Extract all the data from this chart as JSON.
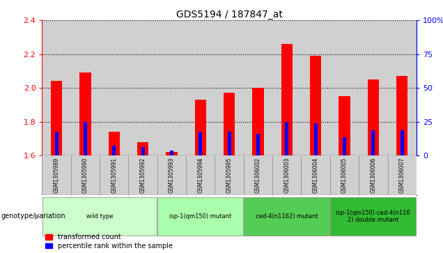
{
  "title": "GDS5194 / 187847_at",
  "samples": [
    "GSM1305989",
    "GSM1305990",
    "GSM1305991",
    "GSM1305992",
    "GSM1305993",
    "GSM1305994",
    "GSM1305995",
    "GSM1306002",
    "GSM1306003",
    "GSM1306004",
    "GSM1306005",
    "GSM1306006",
    "GSM1306007"
  ],
  "red_values": [
    2.04,
    2.09,
    1.74,
    1.68,
    1.62,
    1.93,
    1.97,
    2.0,
    2.26,
    2.19,
    1.95,
    2.05,
    2.07
  ],
  "blue_values": [
    1.74,
    1.8,
    1.66,
    1.65,
    1.63,
    1.74,
    1.74,
    1.73,
    1.8,
    1.79,
    1.71,
    1.75,
    1.75
  ],
  "ylim_left": [
    1.6,
    2.4
  ],
  "ylim_right": [
    0,
    100
  ],
  "yticks_left": [
    1.6,
    1.8,
    2.0,
    2.2,
    2.4
  ],
  "yticks_right": [
    0,
    25,
    50,
    75,
    100
  ],
  "ytick_right_labels": [
    "0",
    "25",
    "50",
    "75",
    "100%"
  ],
  "groups": [
    {
      "label": "wild type",
      "indices": [
        0,
        1,
        2,
        3
      ],
      "color": "#ccffcc"
    },
    {
      "label": "isp-1(qm150) mutant",
      "indices": [
        4,
        5,
        6
      ],
      "color": "#aaffaa"
    },
    {
      "label": "ced-4(n1162) mutant",
      "indices": [
        7,
        8,
        9
      ],
      "color": "#55cc55"
    },
    {
      "label": "isp-1(qm150) ced-4(n116\n2) double mutant",
      "indices": [
        10,
        11,
        12
      ],
      "color": "#33bb33"
    }
  ],
  "group_colors": [
    "#ccffcc",
    "#aaffaa",
    "#55cc55",
    "#33bb33"
  ],
  "red_bar_width": 0.4,
  "blue_bar_width": 0.12,
  "legend_red": "transformed count",
  "legend_blue": "percentile rank within the sample",
  "genotype_label": "genotype/variation",
  "plot_bg_color": "#ffffff",
  "col_bg_color": "#d0d0d0"
}
